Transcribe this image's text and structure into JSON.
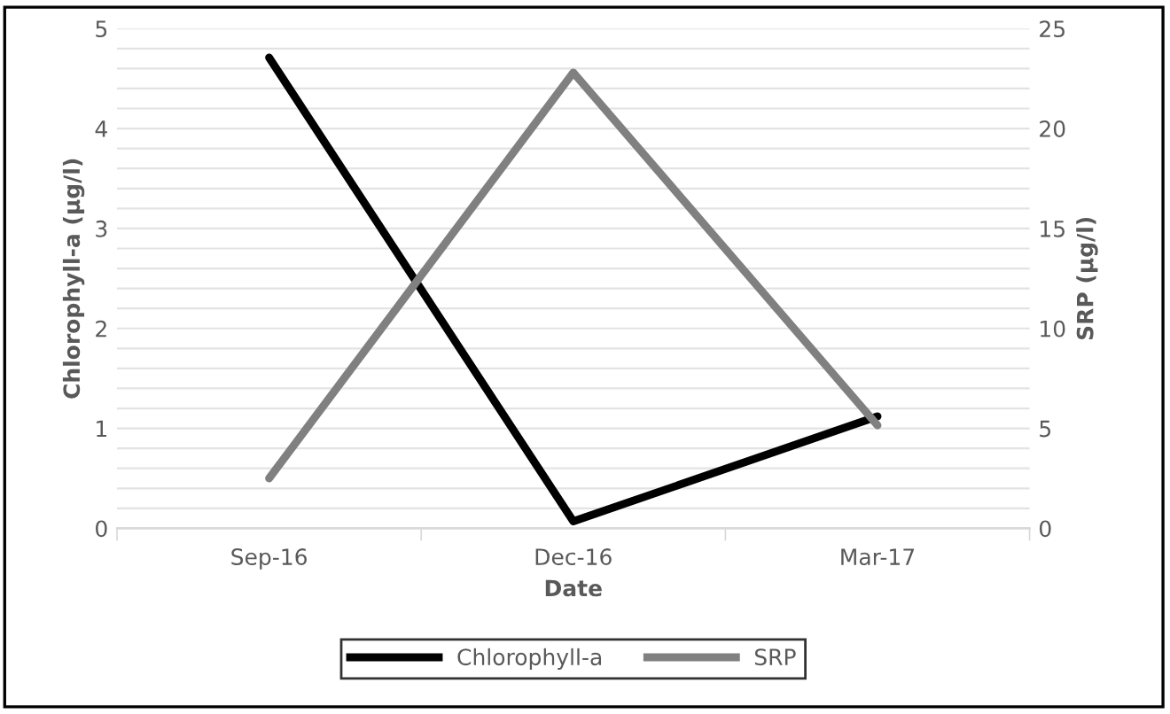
{
  "chart_data": {
    "type": "line",
    "xlabel": "Date",
    "ylabel": "Chlorophyll-a (µg/l)",
    "y2label": "SRP (µg/l)",
    "categories": [
      "Sep-16",
      "Dec-16",
      "Mar-17"
    ],
    "series": [
      {
        "name": "Chlorophyll-a",
        "color": "#000000",
        "values": [
          4.71,
          0.07,
          1.12
        ]
      },
      {
        "name": "SRP",
        "color": "#808080",
        "values": [
          2.5,
          22.8,
          5.15
        ],
        "axis": "y2"
      }
    ],
    "ylim": [
      0,
      5
    ],
    "yticks": [
      0,
      {
        "value": 0.2,
        "label": null
      },
      {
        "value": 0.4,
        "label": null
      },
      {
        "value": 0.6,
        "label": null
      },
      {
        "value": 0.8,
        "label": null
      },
      1,
      {
        "value": 1.2,
        "label": null
      },
      {
        "value": 1.4,
        "label": null
      },
      {
        "value": 1.6,
        "label": null
      },
      {
        "value": 1.8,
        "label": null
      },
      2,
      {
        "value": 2.2,
        "label": null
      },
      {
        "value": 2.4,
        "label": null
      },
      {
        "value": 2.6,
        "label": null
      },
      {
        "value": 2.8,
        "label": null
      },
      3,
      {
        "value": 3.2,
        "label": null
      },
      {
        "value": 3.4,
        "label": null
      },
      {
        "value": 3.6,
        "label": null
      },
      {
        "value": 3.8,
        "label": null
      },
      4,
      {
        "value": 4.2,
        "label": null
      },
      {
        "value": 4.4,
        "label": null
      },
      {
        "value": 4.6,
        "label": null
      },
      {
        "value": 4.8,
        "label": null
      },
      5
    ],
    "y2lim": [
      0,
      25
    ],
    "y2ticks": [
      0,
      5,
      10,
      15,
      20,
      25
    ],
    "grid": "y",
    "legend": "bottom",
    "marker": "none",
    "line_style": "solid"
  }
}
